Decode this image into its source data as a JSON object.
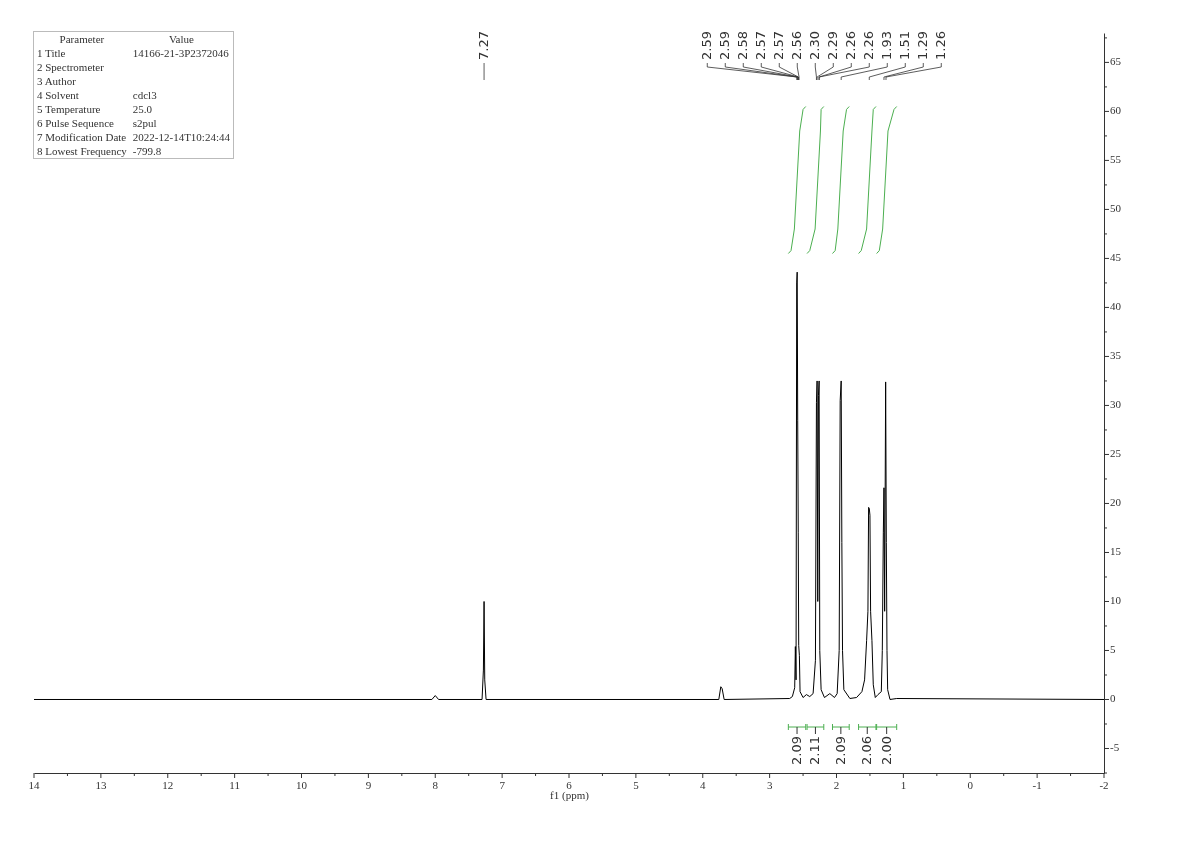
{
  "chart_data": {
    "type": "line",
    "xlabel": "f1 (ppm)",
    "xlim": [
      14,
      -2
    ],
    "ylim": [
      -7.5,
      68
    ],
    "xticks": [
      14,
      {
        "value": 13.5,
        "label": null
      },
      13,
      {
        "value": 12.5,
        "label": null
      },
      12,
      {
        "value": 11.5,
        "label": null
      },
      11,
      {
        "value": 10.5,
        "label": null
      },
      10,
      {
        "value": 9.5,
        "label": null
      },
      9,
      {
        "value": 8.5,
        "label": null
      },
      8,
      {
        "value": 7.5,
        "label": null
      },
      7,
      {
        "value": 6.5,
        "label": null
      },
      6,
      {
        "value": 5.5,
        "label": null
      },
      5,
      {
        "value": 4.5,
        "label": null
      },
      4,
      {
        "value": 3.5,
        "label": null
      },
      3,
      {
        "value": 2.5,
        "label": null
      },
      2,
      {
        "value": 1.5,
        "label": null
      },
      1,
      {
        "value": 0.5,
        "label": null
      },
      0,
      {
        "value": -0.5,
        "label": null
      },
      -1,
      {
        "value": -1.5,
        "label": null
      },
      -2
    ],
    "yticks": [
      {
        "value": -7.5,
        "label": null
      },
      -5,
      {
        "value": -2.5,
        "label": null
      },
      0,
      {
        "value": 2.5,
        "label": null
      },
      5,
      {
        "value": 7.5,
        "label": null
      },
      10,
      {
        "value": 12.5,
        "label": null
      },
      15,
      {
        "value": 17.5,
        "label": null
      },
      20,
      {
        "value": 22.5,
        "label": null
      },
      25,
      {
        "value": 27.5,
        "label": null
      },
      30,
      {
        "value": 32.5,
        "label": null
      },
      35,
      {
        "value": 37.5,
        "label": null
      },
      40,
      {
        "value": 42.5,
        "label": null
      },
      45,
      {
        "value": 47.5,
        "label": null
      },
      50,
      {
        "value": 52.5,
        "label": null
      },
      55,
      {
        "value": 57.5,
        "label": null
      },
      60,
      {
        "value": 62.5,
        "label": null
      },
      65,
      {
        "value": 67.5,
        "label": null
      }
    ],
    "series": [
      {
        "color": "#000000",
        "x": [
          14,
          8.05,
          8.0,
          7.95,
          7.3,
          7.28,
          7.27,
          7.26,
          7.24,
          3.76,
          3.73,
          3.71,
          3.68,
          2.7,
          2.66,
          2.625,
          2.615,
          2.605,
          2.595,
          2.588,
          2.58,
          2.572,
          2.565,
          2.555,
          2.545,
          2.5,
          2.45,
          2.4,
          2.35,
          2.315,
          2.3,
          2.29,
          2.28,
          2.27,
          2.26,
          2.25,
          2.23,
          2.18,
          2.1,
          2.03,
          1.99,
          1.96,
          1.945,
          1.93,
          1.92,
          1.91,
          1.89,
          1.8,
          1.7,
          1.62,
          1.58,
          1.55,
          1.53,
          1.52,
          1.51,
          1.5,
          1.49,
          1.47,
          1.45,
          1.42,
          1.38,
          1.33,
          1.315,
          1.3,
          1.29,
          1.28,
          1.265,
          1.255,
          1.245,
          1.235,
          1.2,
          1.1,
          -2
        ],
        "values": [
          0,
          0,
          0.4,
          0,
          0,
          3,
          10,
          2,
          0,
          0,
          1.3,
          1.1,
          0,
          0.1,
          0.3,
          1.2,
          5.4,
          2,
          42.5,
          43.6,
          28.5,
          17,
          5.5,
          4.5,
          0.8,
          0.2,
          0.5,
          0.3,
          0.6,
          4,
          30.3,
          32.5,
          10,
          31,
          32.5,
          5,
          1,
          0.2,
          0.6,
          0.2,
          0.6,
          5,
          30.5,
          32.5,
          16,
          5,
          1,
          0.1,
          0.2,
          0.8,
          2,
          6,
          9,
          19.6,
          19.5,
          18.8,
          9,
          6,
          1.5,
          0.2,
          0.5,
          0.8,
          5,
          17,
          21.6,
          9,
          32.4,
          16,
          5,
          1,
          0,
          0.1,
          0
        ]
      },
      {
        "color": "#4caf50",
        "x": [
          2.72,
          2.68,
          2.63,
          2.59,
          2.55,
          2.5,
          2.46
        ],
        "values": [
          45.5,
          45.8,
          48,
          53,
          58,
          60.2,
          60.5
        ]
      },
      {
        "color": "#4caf50",
        "x": [
          2.44,
          2.4,
          2.32,
          2.28,
          2.24,
          2.23,
          2.19
        ],
        "values": [
          45.5,
          45.8,
          48,
          53,
          58,
          60.2,
          60.5
        ]
      },
      {
        "color": "#4caf50",
        "x": [
          2.06,
          2.02,
          1.98,
          1.94,
          1.9,
          1.85,
          1.81
        ],
        "values": [
          45.5,
          45.8,
          48,
          53,
          58,
          60.2,
          60.5
        ]
      },
      {
        "color": "#4caf50",
        "x": [
          1.67,
          1.63,
          1.55,
          1.51,
          1.47,
          1.45,
          1.41
        ],
        "values": [
          45.5,
          45.8,
          48,
          53,
          58,
          60.2,
          60.5
        ]
      },
      {
        "color": "#4caf50",
        "x": [
          1.4,
          1.36,
          1.31,
          1.27,
          1.23,
          1.14,
          1.1
        ],
        "values": [
          45.5,
          45.8,
          48,
          53,
          58,
          60.2,
          60.5
        ]
      }
    ],
    "annotations": [
      "Parameter\tValue",
      "1 Title\t14166-21-3P2372046",
      "2 Spectrometer\t",
      "3 Author\t",
      "4 Solvent\tcdcl3",
      "5 Temperature\t25.0",
      "6 Pulse Sequence\ts2pul",
      "7 Modification Date\t2022-12-14T10:24:44",
      "8 Lowest Frequency\t-799.8",
      {
        "text": "7.27",
        "x": 7.27
      },
      {
        "text": "2.59",
        "x": 2.59
      },
      {
        "text": "2.59",
        "x": 2.59
      },
      {
        "text": "2.58",
        "x": 2.58
      },
      {
        "text": "2.57",
        "x": 2.57
      },
      {
        "text": "2.57",
        "x": 2.57
      },
      {
        "text": "2.56",
        "x": 2.56
      },
      {
        "text": "2.30",
        "x": 2.3
      },
      {
        "text": "2.29",
        "x": 2.29
      },
      {
        "text": "2.26",
        "x": 2.26
      },
      {
        "text": "2.26",
        "x": 2.26
      },
      {
        "text": "1.93",
        "x": 1.93
      },
      {
        "text": "1.51",
        "x": 1.51
      },
      {
        "text": "1.29",
        "x": 1.29
      },
      {
        "text": "1.26",
        "x": 1.26
      },
      "2.09",
      "2.11",
      "2.09",
      "2.06",
      "2.00"
    ]
  }
}
